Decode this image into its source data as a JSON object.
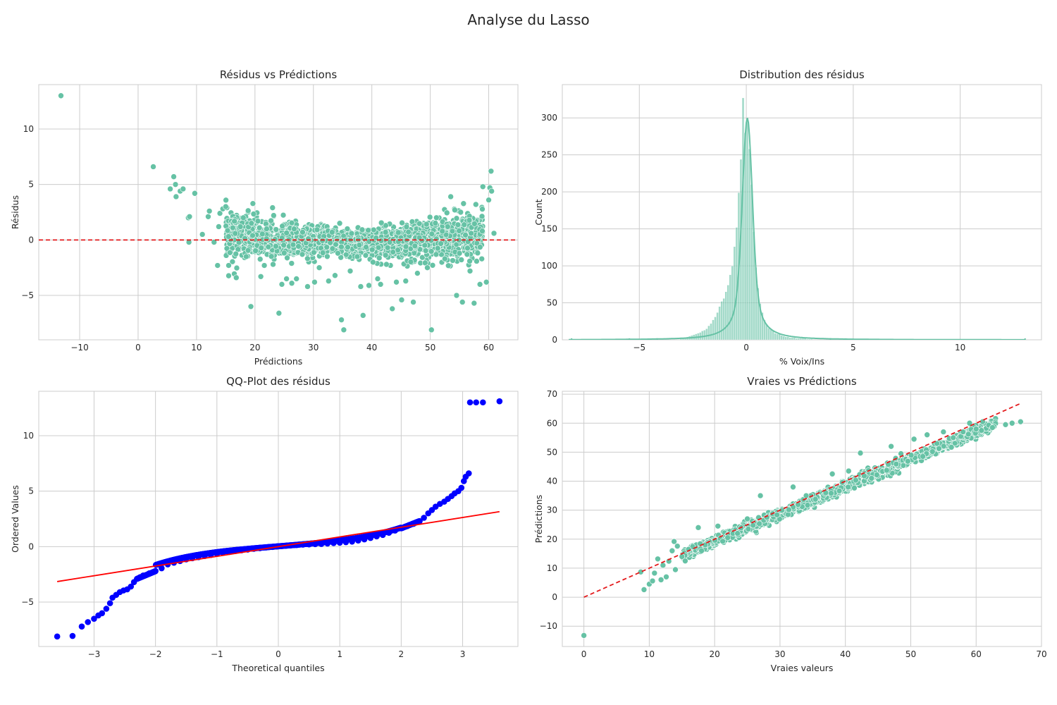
{
  "figure": {
    "title": "Analyse du Lasso"
  },
  "chart_data": [
    {
      "id": "residuals_vs_predictions",
      "type": "scatter",
      "title": "Résidus vs Prédictions",
      "xlabel": "Prédictions",
      "ylabel": "Résidus",
      "xlim": [
        -17,
        65
      ],
      "ylim": [
        -9,
        14
      ],
      "xticks": [
        -10,
        0,
        10,
        20,
        30,
        40,
        50,
        60
      ],
      "yticks": [
        -5,
        0,
        5,
        10
      ],
      "xtick_labels": [
        "−10",
        "0",
        "10",
        "20",
        "30",
        "40",
        "50",
        "60"
      ],
      "ytick_labels": [
        "−5",
        "0",
        "5",
        "10"
      ],
      "reference_line": {
        "y": 0,
        "style": "dashed",
        "color": "#e41a1c"
      },
      "marker_color": "#66c2a5",
      "points": [
        [
          -13.2,
          13.0
        ],
        [
          2.6,
          6.6
        ],
        [
          5.5,
          4.6
        ],
        [
          6.1,
          5.7
        ],
        [
          6.4,
          5.0
        ],
        [
          6.5,
          3.9
        ],
        [
          7.2,
          4.4
        ],
        [
          7.7,
          4.6
        ],
        [
          8.6,
          2.0
        ],
        [
          8.8,
          2.1
        ],
        [
          8.7,
          -0.2
        ],
        [
          9.7,
          4.2
        ],
        [
          11.0,
          0.5
        ],
        [
          12.0,
          2.1
        ],
        [
          12.2,
          2.6
        ],
        [
          13.0,
          -0.2
        ],
        [
          13.6,
          -2.3
        ],
        [
          13.8,
          1.2
        ],
        [
          14.0,
          2.4
        ],
        [
          14.5,
          2.8
        ],
        [
          15.0,
          3.0
        ],
        [
          15.5,
          -2.3
        ],
        [
          16.2,
          1.1
        ],
        [
          16.8,
          -3.4
        ],
        [
          17.5,
          1.2
        ],
        [
          18.0,
          2.0
        ],
        [
          18.5,
          -1.5
        ],
        [
          19.3,
          -6.0
        ],
        [
          19.6,
          0.4
        ],
        [
          20.5,
          1.7
        ],
        [
          21.0,
          -3.3
        ],
        [
          21.6,
          -2.3
        ],
        [
          22.0,
          1.0
        ],
        [
          23.1,
          -2.2
        ],
        [
          24.1,
          -6.6
        ],
        [
          24.6,
          -4.0
        ],
        [
          25.4,
          -3.5
        ],
        [
          26.3,
          -3.9
        ],
        [
          27.1,
          -3.5
        ],
        [
          28.1,
          -1.3
        ],
        [
          29.0,
          -4.2
        ],
        [
          30.2,
          -3.8
        ],
        [
          31.0,
          -2.5
        ],
        [
          32.6,
          -3.7
        ],
        [
          33.2,
          0.7
        ],
        [
          33.7,
          -3.2
        ],
        [
          34.5,
          1.5
        ],
        [
          34.8,
          -7.2
        ],
        [
          35.2,
          -8.1
        ],
        [
          36.3,
          -2.8
        ],
        [
          37.5,
          -1.5
        ],
        [
          38.1,
          -4.2
        ],
        [
          38.5,
          -6.8
        ],
        [
          39.5,
          -4.1
        ],
        [
          40.2,
          -2.0
        ],
        [
          41.0,
          -3.5
        ],
        [
          41.5,
          -4.0
        ],
        [
          42.5,
          -2.2
        ],
        [
          43.5,
          -6.2
        ],
        [
          44.2,
          -3.8
        ],
        [
          45.1,
          -5.4
        ],
        [
          45.8,
          -3.7
        ],
        [
          47.1,
          -5.6
        ],
        [
          47.8,
          -3.0
        ],
        [
          49.5,
          -2.5
        ],
        [
          50.2,
          -8.1
        ],
        [
          51.0,
          -1.3
        ],
        [
          52.5,
          -1.7
        ],
        [
          53.5,
          3.9
        ],
        [
          54.2,
          2.7
        ],
        [
          54.5,
          -5.0
        ],
        [
          55.0,
          -1.2
        ],
        [
          55.5,
          -5.6
        ],
        [
          56.3,
          -1.3
        ],
        [
          56.8,
          -2.8
        ],
        [
          57.5,
          -5.7
        ],
        [
          57.8,
          3.2
        ],
        [
          58.5,
          -4.0
        ],
        [
          59.0,
          4.8
        ],
        [
          59.6,
          -3.8
        ],
        [
          60.0,
          3.6
        ],
        [
          60.2,
          4.7
        ],
        [
          60.4,
          6.2
        ],
        [
          60.5,
          4.4
        ],
        [
          60.9,
          0.6
        ],
        [
          57.0,
          0.6
        ],
        [
          58.9,
          0.8
        ],
        [
          55.2,
          2.5
        ]
      ],
      "cloud_band": {
        "x_range": [
          15,
          59
        ],
        "description_points": "dense"
      }
    },
    {
      "id": "residual_distribution",
      "type": "bar",
      "title": "Distribution des résidus",
      "xlabel": "% Voix/Ins",
      "ylabel": "Count",
      "xlim": [
        -8.6,
        13.8
      ],
      "ylim": [
        0,
        345
      ],
      "xticks": [
        -5,
        0,
        5,
        10
      ],
      "yticks": [
        0,
        50,
        100,
        150,
        200,
        250,
        300
      ],
      "xtick_labels": [
        "−5",
        "0",
        "5",
        "10"
      ],
      "ytick_labels": [
        "0",
        "50",
        "100",
        "150",
        "200",
        "250",
        "300"
      ],
      "bin_width": 0.1,
      "bins_center": [
        -3.05,
        -2.95,
        -2.85,
        -2.75,
        -2.65,
        -2.55,
        -2.45,
        -2.35,
        -2.25,
        -2.15,
        -2.05,
        -1.95,
        -1.85,
        -1.75,
        -1.65,
        -1.55,
        -1.45,
        -1.35,
        -1.25,
        -1.15,
        -1.05,
        -0.95,
        -0.85,
        -0.75,
        -0.65,
        -0.55,
        -0.45,
        -0.35,
        -0.25,
        -0.15,
        -0.05,
        0.05,
        0.15,
        0.25,
        0.35,
        0.45,
        0.55,
        0.65,
        0.75,
        0.85,
        0.95,
        1.05,
        1.15,
        1.25,
        1.35,
        1.45,
        1.55,
        1.65,
        1.75,
        1.85,
        1.95,
        2.05,
        2.15,
        2.25,
        2.35,
        2.45,
        2.55,
        2.65,
        2.75,
        2.85,
        2.95,
        3.05
      ],
      "counts": [
        2,
        3,
        3,
        4,
        5,
        6,
        7,
        8,
        9,
        10,
        12,
        13,
        15,
        19,
        22,
        27,
        31,
        37,
        45,
        52,
        56,
        65,
        74,
        88,
        100,
        126,
        152,
        199,
        244,
        327,
        280,
        298,
        258,
        210,
        146,
        98,
        70,
        49,
        37,
        27,
        21,
        16,
        14,
        12,
        9,
        8,
        8,
        6,
        5,
        4,
        4,
        3,
        3,
        3,
        2,
        2,
        2,
        2,
        2,
        1,
        1,
        1
      ],
      "kde_color": "#66c2a5",
      "bar_color": "#66c2a5"
    },
    {
      "id": "qq_plot",
      "type": "scatter",
      "title": "QQ-Plot des résidus",
      "xlabel": "Theoretical quantiles",
      "ylabel": "Ordered Values",
      "xlim": [
        -3.9,
        3.9
      ],
      "ylim": [
        -9,
        14
      ],
      "xticks": [
        -3,
        -2,
        -1,
        0,
        1,
        2,
        3
      ],
      "yticks": [
        -5,
        0,
        5,
        10
      ],
      "xtick_labels": [
        "−3",
        "−2",
        "−1",
        "0",
        "1",
        "2",
        "3"
      ],
      "ytick_labels": [
        "−5",
        "0",
        "5",
        "10"
      ],
      "marker_color": "#0000ff",
      "fit_line": {
        "x": [
          -3.6,
          3.6
        ],
        "y": [
          -3.15,
          3.15
        ],
        "color": "#ff0000"
      },
      "points": [
        [
          -3.6,
          -8.1
        ],
        [
          -3.35,
          -8.05
        ],
        [
          -3.2,
          -7.2
        ],
        [
          -3.1,
          -6.8
        ],
        [
          -3.0,
          -6.5
        ],
        [
          -2.93,
          -6.2
        ],
        [
          -2.87,
          -6.0
        ],
        [
          -2.8,
          -5.6
        ],
        [
          -2.74,
          -5.1
        ],
        [
          -2.7,
          -4.6
        ],
        [
          -2.64,
          -4.35
        ],
        [
          -2.58,
          -4.1
        ],
        [
          -2.52,
          -3.95
        ],
        [
          -2.46,
          -3.85
        ],
        [
          -2.4,
          -3.6
        ],
        [
          -2.35,
          -3.2
        ],
        [
          -2.3,
          -2.9
        ],
        [
          -2.25,
          -2.75
        ],
        [
          -2.2,
          -2.6
        ],
        [
          -2.1,
          -2.4
        ],
        [
          -2.0,
          -2.2
        ],
        [
          -1.9,
          -1.95
        ],
        [
          -1.8,
          -1.6
        ],
        [
          -1.7,
          -1.45
        ],
        [
          -1.6,
          -1.3
        ],
        [
          -1.5,
          -1.15
        ],
        [
          -1.4,
          -1.05
        ],
        [
          -1.3,
          -0.95
        ],
        [
          -1.2,
          -0.85
        ],
        [
          -1.1,
          -0.75
        ],
        [
          -1.0,
          -0.65
        ],
        [
          -0.9,
          -0.55
        ],
        [
          -0.8,
          -0.48
        ],
        [
          -0.7,
          -0.4
        ],
        [
          -0.6,
          -0.33
        ],
        [
          -0.5,
          -0.27
        ],
        [
          -0.4,
          -0.2
        ],
        [
          -0.3,
          -0.14
        ],
        [
          -0.2,
          -0.08
        ],
        [
          -0.1,
          -0.03
        ],
        [
          0.0,
          0.03
        ],
        [
          0.1,
          0.07
        ],
        [
          0.2,
          0.11
        ],
        [
          0.3,
          0.14
        ],
        [
          0.4,
          0.18
        ],
        [
          0.5,
          0.2
        ],
        [
          0.6,
          0.22
        ],
        [
          0.7,
          0.24
        ],
        [
          0.8,
          0.28
        ],
        [
          0.9,
          0.32
        ],
        [
          1.0,
          0.35
        ],
        [
          1.1,
          0.4
        ],
        [
          1.2,
          0.45
        ],
        [
          1.3,
          0.55
        ],
        [
          1.4,
          0.65
        ],
        [
          1.5,
          0.78
        ],
        [
          1.6,
          0.92
        ],
        [
          1.7,
          1.05
        ],
        [
          1.8,
          1.25
        ],
        [
          1.9,
          1.45
        ],
        [
          2.0,
          1.65
        ],
        [
          2.1,
          1.85
        ],
        [
          2.2,
          2.05
        ],
        [
          2.3,
          2.3
        ],
        [
          2.37,
          2.6
        ],
        [
          2.44,
          3.0
        ],
        [
          2.5,
          3.3
        ],
        [
          2.56,
          3.6
        ],
        [
          2.63,
          3.85
        ],
        [
          2.7,
          4.05
        ],
        [
          2.76,
          4.3
        ],
        [
          2.82,
          4.55
        ],
        [
          2.87,
          4.8
        ],
        [
          2.93,
          5.0
        ],
        [
          2.98,
          5.3
        ],
        [
          3.02,
          5.9
        ],
        [
          3.05,
          6.3
        ],
        [
          3.1,
          6.6
        ],
        [
          3.12,
          13.0
        ],
        [
          3.22,
          13.0
        ],
        [
          3.33,
          13.0
        ],
        [
          3.6,
          13.1
        ]
      ]
    },
    {
      "id": "true_vs_predicted",
      "type": "scatter",
      "title": "Vraies vs Prédictions",
      "xlabel": "Vraies valeurs",
      "ylabel": "Prédictions",
      "xlim": [
        -3.3,
        70
      ],
      "ylim": [
        -17,
        71
      ],
      "xticks": [
        0,
        10,
        20,
        30,
        40,
        50,
        60,
        70
      ],
      "yticks": [
        -10,
        0,
        10,
        20,
        30,
        40,
        50,
        60,
        70
      ],
      "xtick_labels": [
        "0",
        "10",
        "20",
        "30",
        "40",
        "50",
        "60",
        "70"
      ],
      "ytick_labels": [
        "−10",
        "0",
        "10",
        "20",
        "30",
        "40",
        "50",
        "60",
        "70"
      ],
      "marker_color": "#66c2a5",
      "identity_line": {
        "x": [
          0,
          66.7
        ],
        "y": [
          0,
          66.7
        ],
        "style": "dashed",
        "color": "#e41a1c"
      },
      "points": [
        [
          0,
          -13.2
        ],
        [
          8.7,
          8.7
        ],
        [
          9.2,
          2.6
        ],
        [
          10.0,
          4.5
        ],
        [
          10.5,
          5.6
        ],
        [
          10.8,
          8.3
        ],
        [
          11.3,
          13.2
        ],
        [
          11.8,
          6.0
        ],
        [
          12.1,
          11.0
        ],
        [
          12.6,
          7.0
        ],
        [
          13.0,
          12.4
        ],
        [
          13.5,
          16.0
        ],
        [
          13.8,
          19.2
        ],
        [
          14.0,
          9.5
        ],
        [
          14.3,
          17.6
        ],
        [
          15.0,
          14.0
        ],
        [
          15.5,
          12.5
        ],
        [
          16.0,
          16.5
        ],
        [
          17.5,
          24.0
        ],
        [
          18.0,
          16.0
        ],
        [
          20.5,
          24.5
        ],
        [
          22.0,
          20.5
        ],
        [
          23.5,
          22.0
        ],
        [
          25.0,
          27.0
        ],
        [
          27.0,
          35.0
        ],
        [
          28.0,
          27.5
        ],
        [
          32.0,
          38.0
        ],
        [
          34.0,
          35.0
        ],
        [
          37.0,
          36.0
        ],
        [
          38.0,
          42.5
        ],
        [
          40.5,
          43.5
        ],
        [
          42.3,
          49.7
        ],
        [
          44.0,
          41.0
        ],
        [
          47.0,
          52.0
        ],
        [
          48.5,
          49.5
        ],
        [
          50.5,
          54.5
        ],
        [
          52.5,
          56.0
        ],
        [
          54.0,
          53.0
        ],
        [
          55.0,
          57.0
        ],
        [
          56.5,
          55.0
        ],
        [
          58.0,
          57.0
        ],
        [
          59.0,
          60.0
        ],
        [
          60.0,
          58.0
        ],
        [
          61.0,
          60.5
        ],
        [
          62.5,
          58.5
        ],
        [
          64.5,
          59.5
        ],
        [
          65.5,
          60.0
        ],
        [
          66.8,
          60.5
        ]
      ],
      "cloud": {
        "x_range": [
          15,
          63
        ],
        "relation": "y ≈ 0.94x + 1"
      }
    }
  ]
}
